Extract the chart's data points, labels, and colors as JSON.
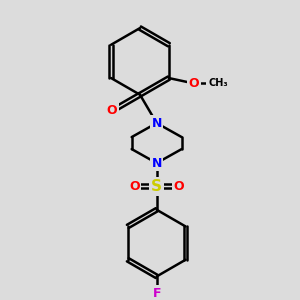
{
  "bg_color": "#dcdcdc",
  "atom_colors": {
    "N": "#0000ff",
    "O": "#ff0000",
    "S": "#cccc00",
    "F": "#cc00cc",
    "C": "#000000"
  },
  "line_color": "#000000",
  "line_width": 1.8
}
